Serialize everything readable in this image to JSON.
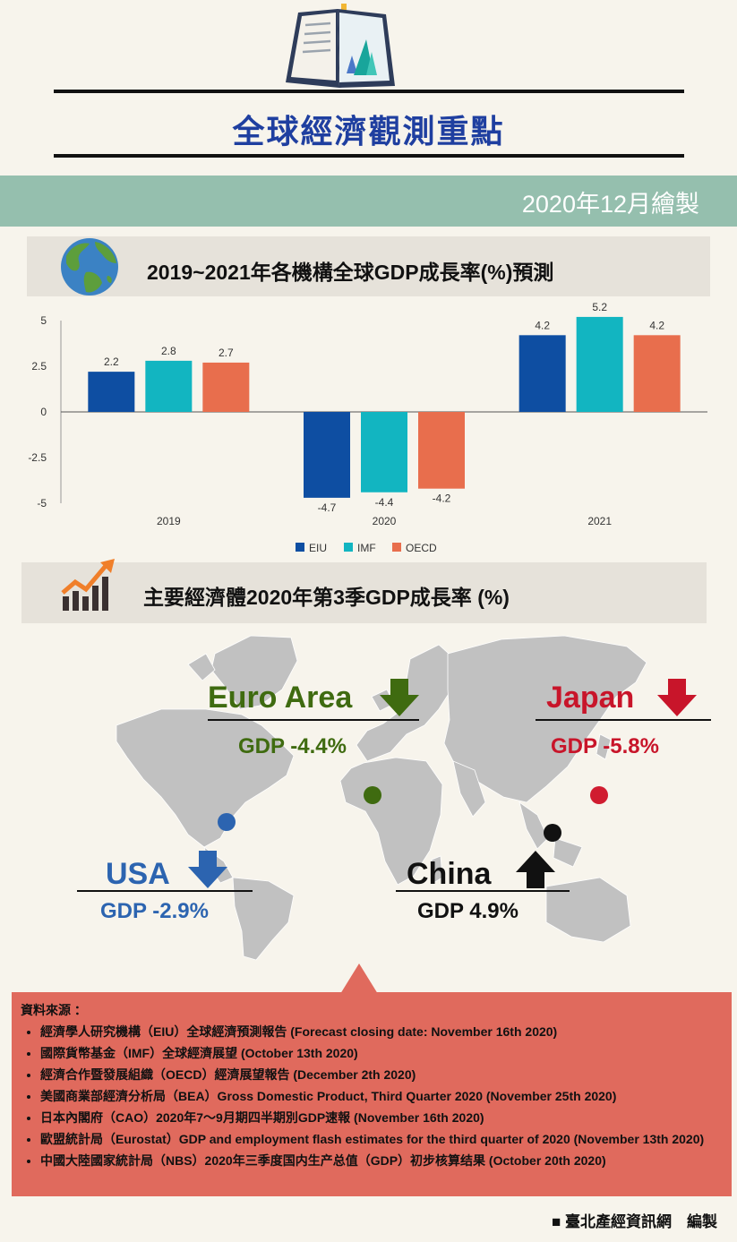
{
  "header": {
    "title": "全球經濟觀測重點",
    "date": "2020年12月繪製"
  },
  "section1": {
    "title": "2019~2021年各機構全球GDP成長率(%)預測"
  },
  "section2": {
    "title": "主要經濟體2020年第3季GDP成長率 (%)"
  },
  "chart_data": {
    "type": "bar",
    "categories": [
      "2019",
      "2020",
      "2021"
    ],
    "series": [
      {
        "name": "EIU",
        "values": [
          2.2,
          -4.7,
          4.2
        ],
        "color": "#0e4ea2"
      },
      {
        "name": "IMF",
        "values": [
          2.8,
          -4.4,
          5.2
        ],
        "color": "#12b5c1"
      },
      {
        "name": "OECD",
        "values": [
          2.7,
          -4.2,
          4.2
        ],
        "color": "#e86e4d"
      }
    ],
    "yticks": [
      "5",
      "2.5",
      "0",
      "-2.5",
      "-5"
    ],
    "ylim": [
      -5,
      5
    ],
    "legend": "bottom",
    "grid": false
  },
  "regions": {
    "euro": {
      "name": "Euro Area",
      "gdp": "GDP -4.4%",
      "trend": "down",
      "color": "#3f6b10"
    },
    "japan": {
      "name": "Japan",
      "gdp": "GDP -5.8%",
      "trend": "down",
      "color": "#c8152a"
    },
    "usa": {
      "name": "USA",
      "gdp": "GDP -2.9%",
      "trend": "down",
      "color": "#2c64b0"
    },
    "china": {
      "name": "China",
      "gdp": "GDP 4.9%",
      "trend": "up",
      "color": "#111111"
    }
  },
  "sources": {
    "title": "資料來源 ：",
    "items": [
      "經濟學人研究機構（EIU）全球經濟預測報告 (Forecast closing date: November 16th 2020)",
      "國際貨幣基金（IMF）全球經濟展望 (October 13th 2020)",
      "經濟合作暨發展組織（OECD）經濟展望報告 (December 2th 2020)",
      "美國商業部經濟分析局（BEA）Gross Domestic Product, Third Quarter 2020 (November 25th 2020)",
      "日本內閣府（CAO）2020年7～9月期四半期別GDP速報 (November 16th 2020)",
      "歐盟統計局（Eurostat）GDP and employment flash estimates for the third quarter of 2020 (November 13th 2020)",
      "中國大陸國家統計局（NBS）2020年三季度国内生产总值（GDP）初步核算结果 (October 20th 2020)"
    ]
  },
  "footer": {
    "credit": "臺北產經資訊網　編製"
  },
  "icons": [
    "book-chart-icon",
    "globe-icon",
    "growth-chart-icon",
    "world-map",
    "arrow-down-icon",
    "arrow-up-icon"
  ]
}
